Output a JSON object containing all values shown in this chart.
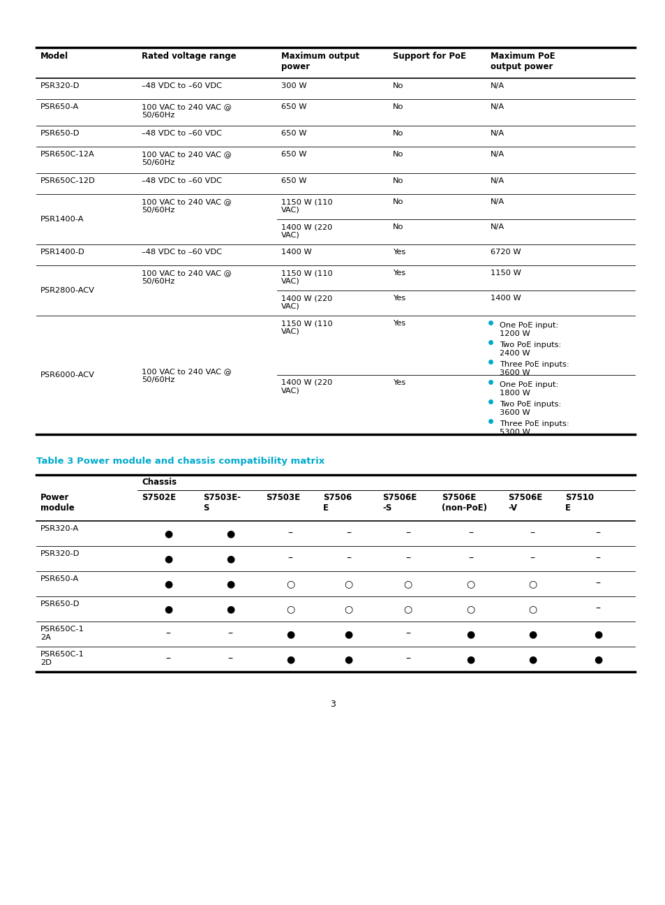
{
  "page_background": "#ffffff",
  "page_number": "3",
  "bullet_color": "#00aacc",
  "table2_title": "Table 3 Power module and chassis compatibility matrix",
  "table2_title_color": "#00aacc",
  "table2_rows": [
    {
      "model": "PSR320-A",
      "values": [
        "●",
        "●",
        "–",
        "–",
        "–",
        "–",
        "–",
        "–"
      ]
    },
    {
      "model": "PSR320-D",
      "values": [
        "●",
        "●",
        "–",
        "–",
        "–",
        "–",
        "–",
        "–"
      ]
    },
    {
      "model": "PSR650-A",
      "values": [
        "●",
        "●",
        "○",
        "○",
        "○",
        "○",
        "○",
        "–"
      ]
    },
    {
      "model": "PSR650-D",
      "values": [
        "●",
        "●",
        "○",
        "○",
        "○",
        "○",
        "○",
        "–"
      ]
    },
    {
      "model": "PSR650C-1\n2A",
      "values": [
        "–",
        "–",
        "●",
        "●",
        "–",
        "●",
        "●",
        "●"
      ]
    },
    {
      "model": "PSR650C-1\n2D",
      "values": [
        "–",
        "–",
        "●",
        "●",
        "–",
        "●",
        "●",
        "●"
      ]
    }
  ]
}
